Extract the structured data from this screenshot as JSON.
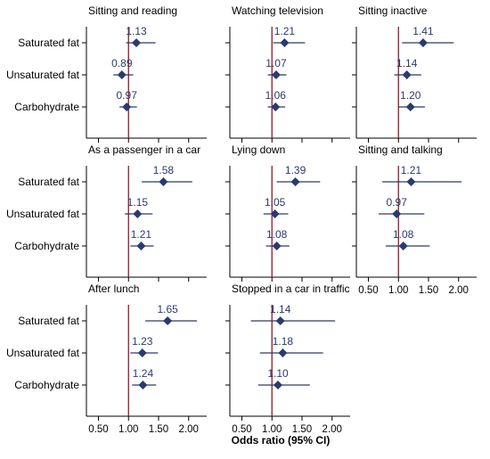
{
  "chart_data": {
    "type": "forest",
    "xlabel": "Odds ratio (95% CI)",
    "xlim": [
      0.3,
      2.3
    ],
    "xticks": [
      0.5,
      1.0,
      1.5,
      2.0
    ],
    "xtick_labels": [
      "0.50",
      "1.00",
      "1.50",
      "2.00"
    ],
    "reference_line": 1.0,
    "categories": [
      "Saturated fat",
      "Unsaturated fat",
      "Carbohydrate"
    ],
    "colors": {
      "point": "#2a3a6e",
      "ci": "#2a3a6e",
      "reference": "#8b1a2a",
      "label": "#2a3a6e",
      "axis": "#000000"
    },
    "panels": [
      {
        "title": "Sitting and reading",
        "or": [
          1.13,
          0.89,
          0.97
        ],
        "labels": [
          "1.13",
          "0.89",
          "0.97"
        ],
        "ci": [
          [
            0.96,
            1.45
          ],
          [
            0.75,
            1.08
          ],
          [
            0.85,
            1.14
          ]
        ]
      },
      {
        "title": "Watching television",
        "or": [
          1.21,
          1.07,
          1.06
        ],
        "labels": [
          "1.21",
          "1.07",
          "1.06"
        ],
        "ci": [
          [
            1.02,
            1.55
          ],
          [
            0.93,
            1.24
          ],
          [
            0.93,
            1.22
          ]
        ]
      },
      {
        "title": "Sitting inactive",
        "or": [
          1.41,
          1.14,
          1.2
        ],
        "labels": [
          "1.41",
          "1.14",
          "1.20"
        ],
        "ci": [
          [
            1.06,
            1.92
          ],
          [
            0.93,
            1.38
          ],
          [
            1.0,
            1.44
          ]
        ]
      },
      {
        "title": "As a passenger in a car",
        "or": [
          1.58,
          1.15,
          1.21
        ],
        "labels": [
          "1.58",
          "1.15",
          "1.21"
        ],
        "ci": [
          [
            1.22,
            2.06
          ],
          [
            0.94,
            1.4
          ],
          [
            1.03,
            1.42
          ]
        ]
      },
      {
        "title": "Lying down",
        "or": [
          1.39,
          1.05,
          1.08
        ],
        "labels": [
          "1.39",
          "1.05",
          "1.08"
        ],
        "ci": [
          [
            1.08,
            1.8
          ],
          [
            0.86,
            1.27
          ],
          [
            0.9,
            1.29
          ]
        ]
      },
      {
        "title": "Sitting and talking",
        "or": [
          1.21,
          0.97,
          1.08
        ],
        "labels": [
          "1.21",
          "0.97",
          "1.08"
        ],
        "ci": [
          [
            0.73,
            2.05
          ],
          [
            0.67,
            1.43
          ],
          [
            0.79,
            1.52
          ]
        ]
      },
      {
        "title": "After lunch",
        "or": [
          1.65,
          1.23,
          1.24
        ],
        "labels": [
          "1.65",
          "1.23",
          "1.24"
        ],
        "ci": [
          [
            1.28,
            2.14
          ],
          [
            1.03,
            1.49
          ],
          [
            1.06,
            1.46
          ]
        ]
      },
      {
        "title": "Stopped in a car in traffic",
        "or": [
          1.14,
          1.18,
          1.1
        ],
        "labels": [
          "1.14",
          "1.18",
          "1.10"
        ],
        "ci": [
          [
            0.65,
            2.05
          ],
          [
            0.8,
            1.85
          ],
          [
            0.77,
            1.63
          ]
        ]
      }
    ]
  }
}
